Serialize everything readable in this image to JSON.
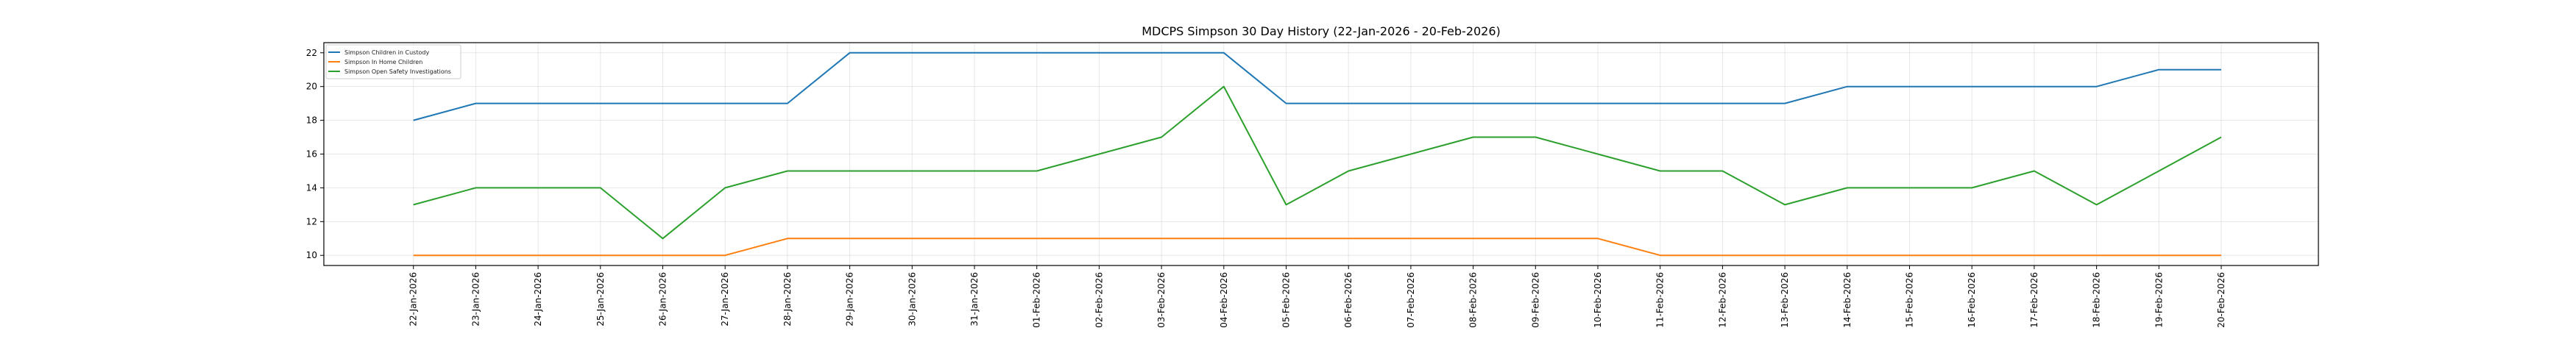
{
  "chart_data": {
    "type": "line",
    "title": "MDCPS Simpson 30 Day History (22-Jan-2026 - 20-Feb-2026)",
    "xlabel": "",
    "ylabel": "",
    "ylim": [
      9.4,
      22.6
    ],
    "yticks": [
      10,
      12,
      14,
      16,
      18,
      20,
      22
    ],
    "grid": true,
    "legend_position": "top-left",
    "x": [
      "22-Jan-2026",
      "23-Jan-2026",
      "24-Jan-2026",
      "25-Jan-2026",
      "26-Jan-2026",
      "27-Jan-2026",
      "28-Jan-2026",
      "29-Jan-2026",
      "30-Jan-2026",
      "31-Jan-2026",
      "01-Feb-2026",
      "02-Feb-2026",
      "03-Feb-2026",
      "04-Feb-2026",
      "05-Feb-2026",
      "06-Feb-2026",
      "07-Feb-2026",
      "08-Feb-2026",
      "09-Feb-2026",
      "10-Feb-2026",
      "11-Feb-2026",
      "12-Feb-2026",
      "13-Feb-2026",
      "14-Feb-2026",
      "15-Feb-2026",
      "16-Feb-2026",
      "17-Feb-2026",
      "18-Feb-2026",
      "19-Feb-2026",
      "20-Feb-2026"
    ],
    "series": [
      {
        "name": "Simpson Children in Custody",
        "color": "#1f77b4",
        "values": [
          18,
          19,
          19,
          19,
          19,
          19,
          19,
          22,
          22,
          22,
          22,
          22,
          22,
          22,
          19,
          19,
          19,
          19,
          19,
          19,
          19,
          19,
          19,
          20,
          20,
          20,
          20,
          20,
          21,
          21
        ]
      },
      {
        "name": "Simpson In Home Children",
        "color": "#ff7f0e",
        "values": [
          10,
          10,
          10,
          10,
          10,
          10,
          11,
          11,
          11,
          11,
          11,
          11,
          11,
          11,
          11,
          11,
          11,
          11,
          11,
          11,
          10,
          10,
          10,
          10,
          10,
          10,
          10,
          10,
          10,
          10
        ]
      },
      {
        "name": "Simpson Open Safety Investigations",
        "color": "#2ca02c",
        "values": [
          13,
          14,
          14,
          14,
          11,
          14,
          15,
          15,
          15,
          15,
          15,
          16,
          17,
          20,
          13,
          15,
          16,
          17,
          17,
          16,
          15,
          15,
          13,
          14,
          14,
          14,
          15,
          13,
          15,
          17
        ]
      }
    ]
  }
}
